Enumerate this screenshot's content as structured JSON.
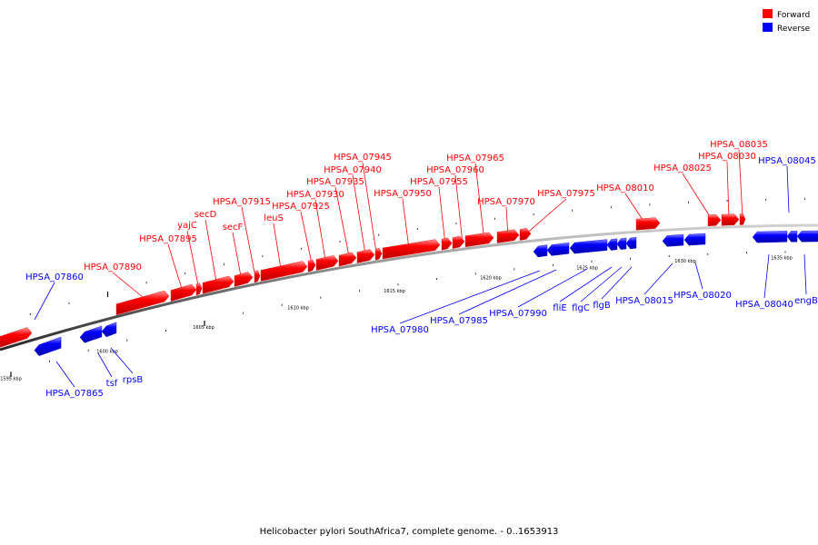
{
  "legend": {
    "forward": {
      "label": "Forward",
      "color": "#ff0000"
    },
    "reverse": {
      "label": "Reverse",
      "color": "#0000ff"
    }
  },
  "caption": "Helicobacter pylori SouthAfrica7, complete genome. - 0..1653913",
  "scale": {
    "ticks": [
      {
        "label": "1595 kbp"
      },
      {
        "label": "1600 kbp"
      },
      {
        "label": "1605 kbp"
      },
      {
        "label": "1610 kbp"
      },
      {
        "label": "1615 kbp"
      },
      {
        "label": "1620 kbp"
      },
      {
        "label": "1625 kbp"
      },
      {
        "label": "1630 kbp"
      },
      {
        "label": "1635 kbp"
      }
    ]
  },
  "genes": [
    {
      "name": "",
      "strand": "forward"
    },
    {
      "name": "HPSA_07860",
      "strand": "reverse"
    },
    {
      "name": "HPSA_07865",
      "strand": "reverse"
    },
    {
      "name": "tsf",
      "strand": "reverse"
    },
    {
      "name": "rpsB",
      "strand": "reverse"
    },
    {
      "name": "HPSA_07890",
      "strand": "forward"
    },
    {
      "name": "HPSA_07895",
      "strand": "forward"
    },
    {
      "name": "yajC",
      "strand": "forward"
    },
    {
      "name": "secD",
      "strand": "forward"
    },
    {
      "name": "secF",
      "strand": "forward"
    },
    {
      "name": "HPSA_07915",
      "strand": "forward"
    },
    {
      "name": "leuS",
      "strand": "forward"
    },
    {
      "name": "HPSA_07925",
      "strand": "forward"
    },
    {
      "name": "HPSA_07930",
      "strand": "forward"
    },
    {
      "name": "HPSA_07935",
      "strand": "forward"
    },
    {
      "name": "HPSA_07940",
      "strand": "forward"
    },
    {
      "name": "HPSA_07945",
      "strand": "forward"
    },
    {
      "name": "HPSA_07950",
      "strand": "forward"
    },
    {
      "name": "HPSA_07955",
      "strand": "forward"
    },
    {
      "name": "HPSA_07960",
      "strand": "forward"
    },
    {
      "name": "HPSA_07965",
      "strand": "forward"
    },
    {
      "name": "HPSA_07970",
      "strand": "forward"
    },
    {
      "name": "HPSA_07975",
      "strand": "forward"
    },
    {
      "name": "HPSA_07980",
      "strand": "reverse"
    },
    {
      "name": "HPSA_07985",
      "strand": "reverse"
    },
    {
      "name": "HPSA_07990",
      "strand": "reverse"
    },
    {
      "name": "fliE",
      "strand": "reverse"
    },
    {
      "name": "flgC",
      "strand": "reverse"
    },
    {
      "name": "flgB",
      "strand": "reverse"
    },
    {
      "name": "HPSA_08010",
      "strand": "forward"
    },
    {
      "name": "HPSA_08015",
      "strand": "reverse"
    },
    {
      "name": "HPSA_08020",
      "strand": "reverse"
    },
    {
      "name": "HPSA_08025",
      "strand": "forward"
    },
    {
      "name": "HPSA_08030",
      "strand": "forward"
    },
    {
      "name": "HPSA_08035",
      "strand": "forward"
    },
    {
      "name": "HPSA_08040",
      "strand": "reverse"
    },
    {
      "name": "HPSA_08045",
      "strand": "reverse"
    },
    {
      "name": "engB",
      "strand": "reverse"
    }
  ]
}
